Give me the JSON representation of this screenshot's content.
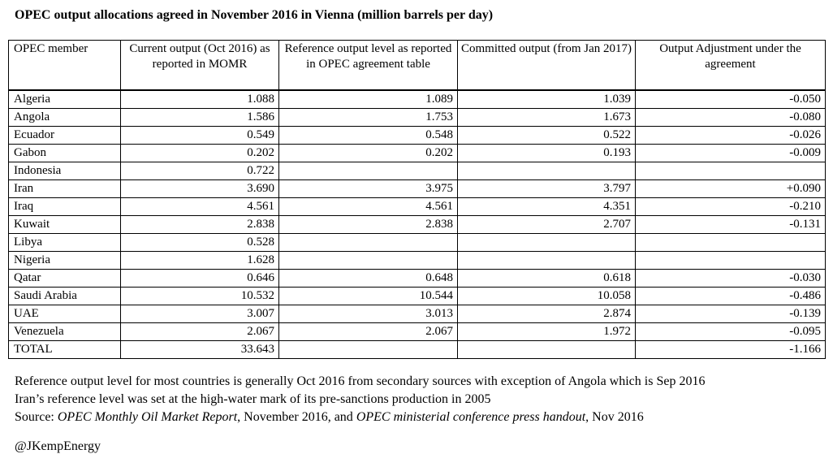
{
  "title": "OPEC output allocations agreed in November 2016 in Vienna (million barrels per day)",
  "table": {
    "columns": [
      "OPEC member",
      "Current output (Oct 2016) as reported in MOMR",
      "Reference output level as reported in OPEC agreement table",
      "Committed output (from Jan 2017)",
      "Output Adjustment under the agreement"
    ],
    "rows": [
      {
        "member": "Algeria",
        "current": "1.088",
        "reference": "1.089",
        "committed": "1.039",
        "adjustment": "-0.050"
      },
      {
        "member": "Angola",
        "current": "1.586",
        "reference": "1.753",
        "committed": "1.673",
        "adjustment": "-0.080"
      },
      {
        "member": "Ecuador",
        "current": "0.549",
        "reference": "0.548",
        "committed": "0.522",
        "adjustment": "-0.026"
      },
      {
        "member": "Gabon",
        "current": "0.202",
        "reference": "0.202",
        "committed": "0.193",
        "adjustment": "-0.009"
      },
      {
        "member": "Indonesia",
        "current": "0.722",
        "reference": "",
        "committed": "",
        "adjustment": ""
      },
      {
        "member": "Iran",
        "current": "3.690",
        "reference": "3.975",
        "committed": "3.797",
        "adjustment": "+0.090"
      },
      {
        "member": "Iraq",
        "current": "4.561",
        "reference": "4.561",
        "committed": "4.351",
        "adjustment": "-0.210"
      },
      {
        "member": "Kuwait",
        "current": "2.838",
        "reference": "2.838",
        "committed": "2.707",
        "adjustment": "-0.131"
      },
      {
        "member": "Libya",
        "current": "0.528",
        "reference": "",
        "committed": "",
        "adjustment": ""
      },
      {
        "member": "Nigeria",
        "current": "1.628",
        "reference": "",
        "committed": "",
        "adjustment": ""
      },
      {
        "member": "Qatar",
        "current": "0.646",
        "reference": "0.648",
        "committed": "0.618",
        "adjustment": "-0.030"
      },
      {
        "member": "Saudi Arabia",
        "current": "10.532",
        "reference": "10.544",
        "committed": "10.058",
        "adjustment": "-0.486"
      },
      {
        "member": "UAE",
        "current": "3.007",
        "reference": "3.013",
        "committed": "2.874",
        "adjustment": "-0.139"
      },
      {
        "member": "Venezuela",
        "current": "2.067",
        "reference": "2.067",
        "committed": "1.972",
        "adjustment": "-0.095"
      },
      {
        "member": "TOTAL",
        "current": "33.643",
        "reference": "",
        "committed": "",
        "adjustment": "-1.166"
      }
    ]
  },
  "notes": [
    "Reference output level for most countries is generally Oct 2016 from secondary sources with exception of Angola which is Sep 2016",
    "Iran’s reference level was set at the high-water mark of its pre-sanctions production in 2005"
  ],
  "source": {
    "prefix": "Source: ",
    "work1": "OPEC Monthly Oil Market Report",
    "mid": ", November 2016, and ",
    "work2": "OPEC ministerial conference press handout",
    "suffix": ", Nov 2016"
  },
  "handle": "@JKempEnergy",
  "colors": {
    "text": "#000000",
    "background": "#ffffff",
    "border": "#000000"
  }
}
